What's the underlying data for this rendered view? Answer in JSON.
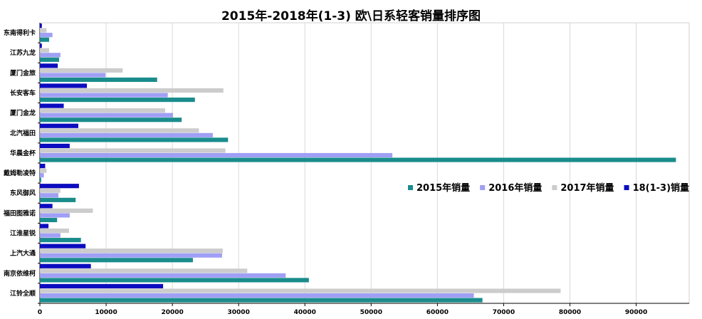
{
  "chart_data": {
    "type": "bar",
    "orientation": "horizontal",
    "title": "2015年-2018年(1-3) 欧\\日系轻客销量排序图",
    "categories": [
      "江铃全顺",
      "南京依维柯",
      "上汽大通",
      "江淮星锐",
      "福田图雅诺",
      "东风御风",
      "戴姆勒凌特",
      "华晨金杯",
      "北汽福田",
      "厦门金龙",
      "长安客车",
      "厦门金旅",
      "江苏九龙",
      "东南得利卡"
    ],
    "series": [
      {
        "name": "2015年销量",
        "color": "#1a8c8c",
        "values": [
          66800,
          40600,
          23100,
          6200,
          2600,
          5400,
          200,
          96000,
          28400,
          21400,
          23400,
          17700,
          2900,
          1400
        ]
      },
      {
        "name": "2016年销量",
        "color": "#9f9ff5",
        "values": [
          65500,
          37100,
          27500,
          3100,
          4500,
          2800,
          600,
          53200,
          26100,
          20100,
          19300,
          9900,
          3100,
          1900
        ]
      },
      {
        "name": "2017年销量",
        "color": "#cccccc",
        "values": [
          78600,
          31300,
          27600,
          4400,
          8000,
          3100,
          1000,
          28000,
          24000,
          18900,
          27700,
          12500,
          1400,
          1000
        ]
      },
      {
        "name": "18(1-3)销量",
        "color": "#0b0bbf",
        "values": [
          18600,
          7700,
          6900,
          1300,
          1900,
          5900,
          800,
          4500,
          5800,
          3600,
          7100,
          2700,
          300,
          300
        ]
      }
    ],
    "xlim": [
      0,
      98000
    ],
    "xticks": [
      0,
      10000,
      20000,
      30000,
      40000,
      50000,
      60000,
      70000,
      80000,
      90000
    ],
    "grid": true,
    "legend_position": "right"
  }
}
